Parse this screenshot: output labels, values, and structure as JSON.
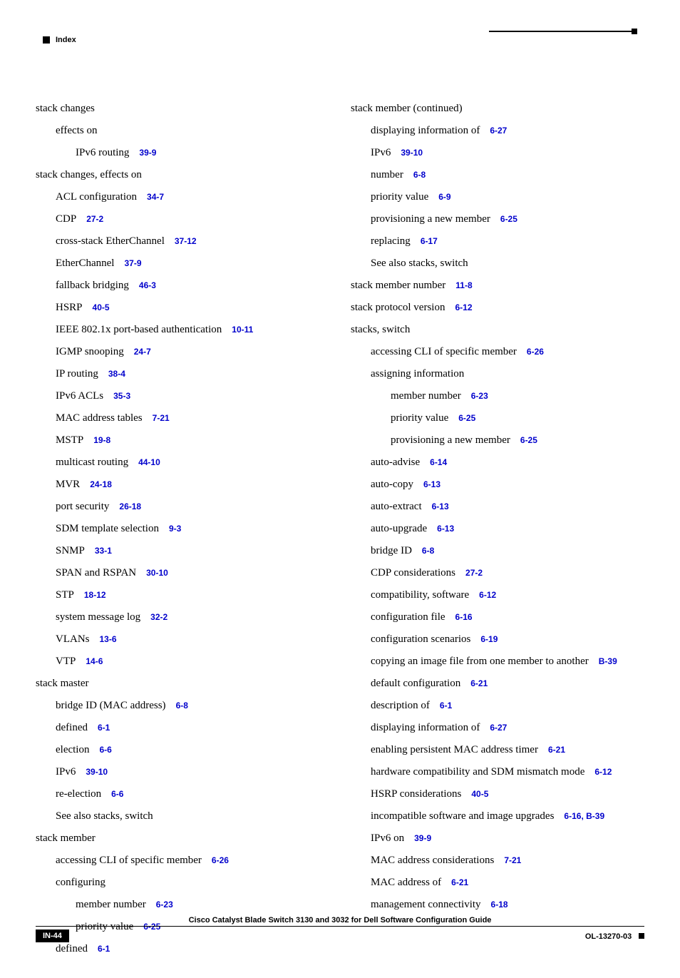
{
  "header": {
    "label": "Index"
  },
  "footer": {
    "title": "Cisco Catalyst Blade Switch 3130 and 3032 for Dell Software Configuration Guide",
    "page_num": "IN-44",
    "doc_id": "OL-13270-03"
  },
  "left": [
    {
      "lvl": 0,
      "text": "stack changes"
    },
    {
      "lvl": 1,
      "text": "effects on"
    },
    {
      "lvl": 2,
      "text": "IPv6 routing",
      "ref": "39-9"
    },
    {
      "lvl": 0,
      "text": "stack changes, effects on"
    },
    {
      "lvl": 1,
      "text": "ACL configuration",
      "ref": "34-7"
    },
    {
      "lvl": 1,
      "text": "CDP",
      "ref": "27-2"
    },
    {
      "lvl": 1,
      "text": "cross-stack EtherChannel",
      "ref": "37-12"
    },
    {
      "lvl": 1,
      "text": "EtherChannel",
      "ref": "37-9"
    },
    {
      "lvl": 1,
      "text": "fallback bridging",
      "ref": "46-3"
    },
    {
      "lvl": 1,
      "text": "HSRP",
      "ref": "40-5"
    },
    {
      "lvl": 1,
      "text": "IEEE 802.1x port-based authentication",
      "ref": "10-11"
    },
    {
      "lvl": 1,
      "text": "IGMP snooping",
      "ref": "24-7"
    },
    {
      "lvl": 1,
      "text": "IP routing",
      "ref": "38-4"
    },
    {
      "lvl": 1,
      "text": "IPv6 ACLs",
      "ref": "35-3"
    },
    {
      "lvl": 1,
      "text": "MAC address tables",
      "ref": "7-21"
    },
    {
      "lvl": 1,
      "text": "MSTP",
      "ref": "19-8"
    },
    {
      "lvl": 1,
      "text": "multicast routing",
      "ref": "44-10"
    },
    {
      "lvl": 1,
      "text": "MVR",
      "ref": "24-18"
    },
    {
      "lvl": 1,
      "text": "port security",
      "ref": "26-18"
    },
    {
      "lvl": 1,
      "text": "SDM template selection",
      "ref": "9-3"
    },
    {
      "lvl": 1,
      "text": "SNMP",
      "ref": "33-1"
    },
    {
      "lvl": 1,
      "text": "SPAN and RSPAN",
      "ref": "30-10"
    },
    {
      "lvl": 1,
      "text": "STP",
      "ref": "18-12"
    },
    {
      "lvl": 1,
      "text": "system message log",
      "ref": "32-2"
    },
    {
      "lvl": 1,
      "text": "VLANs",
      "ref": "13-6"
    },
    {
      "lvl": 1,
      "text": "VTP",
      "ref": "14-6"
    },
    {
      "lvl": 0,
      "text": "stack master"
    },
    {
      "lvl": 1,
      "text": "bridge ID (MAC address)",
      "ref": "6-8"
    },
    {
      "lvl": 1,
      "text": "defined",
      "ref": "6-1"
    },
    {
      "lvl": 1,
      "text": "election",
      "ref": "6-6"
    },
    {
      "lvl": 1,
      "text": "IPv6",
      "ref": "39-10"
    },
    {
      "lvl": 1,
      "text": "re-election",
      "ref": "6-6"
    },
    {
      "lvl": 1,
      "text": "See also stacks, switch"
    },
    {
      "lvl": 0,
      "text": "stack member"
    },
    {
      "lvl": 1,
      "text": "accessing CLI of specific member",
      "ref": "6-26"
    },
    {
      "lvl": 1,
      "text": "configuring"
    },
    {
      "lvl": 2,
      "text": "member number",
      "ref": "6-23"
    },
    {
      "lvl": 2,
      "text": "priority value",
      "ref": "6-25"
    },
    {
      "lvl": 1,
      "text": "defined",
      "ref": "6-1"
    }
  ],
  "right": [
    {
      "lvl": 0,
      "text": "stack member (continued)"
    },
    {
      "lvl": 1,
      "text": "displaying information of",
      "ref": "6-27"
    },
    {
      "lvl": 1,
      "text": "IPv6",
      "ref": "39-10"
    },
    {
      "lvl": 1,
      "text": "number",
      "ref": "6-8"
    },
    {
      "lvl": 1,
      "text": "priority value",
      "ref": "6-9"
    },
    {
      "lvl": 1,
      "text": "provisioning a new member",
      "ref": "6-25"
    },
    {
      "lvl": 1,
      "text": "replacing",
      "ref": "6-17"
    },
    {
      "lvl": 1,
      "text": "See also stacks, switch"
    },
    {
      "lvl": 0,
      "text": "stack member number",
      "ref": "11-8"
    },
    {
      "lvl": 0,
      "text": "stack protocol version",
      "ref": "6-12"
    },
    {
      "lvl": 0,
      "text": "stacks, switch"
    },
    {
      "lvl": 1,
      "text": "accessing CLI of specific member",
      "ref": "6-26"
    },
    {
      "lvl": 1,
      "text": "assigning information"
    },
    {
      "lvl": 2,
      "text": "member number",
      "ref": "6-23"
    },
    {
      "lvl": 2,
      "text": "priority value",
      "ref": "6-25"
    },
    {
      "lvl": 2,
      "text": "provisioning a new member",
      "ref": "6-25"
    },
    {
      "lvl": 1,
      "text": "auto-advise",
      "ref": "6-14"
    },
    {
      "lvl": 1,
      "text": "auto-copy",
      "ref": "6-13"
    },
    {
      "lvl": 1,
      "text": "auto-extract",
      "ref": "6-13"
    },
    {
      "lvl": 1,
      "text": "auto-upgrade",
      "ref": "6-13"
    },
    {
      "lvl": 1,
      "text": "bridge ID",
      "ref": "6-8"
    },
    {
      "lvl": 1,
      "text": "CDP considerations",
      "ref": "27-2"
    },
    {
      "lvl": 1,
      "text": "compatibility, software",
      "ref": "6-12"
    },
    {
      "lvl": 1,
      "text": "configuration file",
      "ref": "6-16"
    },
    {
      "lvl": 1,
      "text": "configuration scenarios",
      "ref": "6-19"
    },
    {
      "lvl": 1,
      "text": "copying an image file from one member to another",
      "ref": "B-39"
    },
    {
      "lvl": 1,
      "text": "default configuration",
      "ref": "6-21"
    },
    {
      "lvl": 1,
      "text": "description of",
      "ref": "6-1"
    },
    {
      "lvl": 1,
      "text": "displaying information of",
      "ref": "6-27"
    },
    {
      "lvl": 1,
      "text": "enabling persistent MAC address timer",
      "ref": "6-21"
    },
    {
      "lvl": 1,
      "text": "hardware compatibility and SDM mismatch mode",
      "ref": "6-12"
    },
    {
      "lvl": 1,
      "text": "HSRP considerations",
      "ref": "40-5"
    },
    {
      "lvl": 1,
      "text": "incompatible software and image upgrades",
      "ref": "6-16, B-39"
    },
    {
      "lvl": 1,
      "text": "IPv6 on",
      "ref": "39-9"
    },
    {
      "lvl": 1,
      "text": "MAC address considerations",
      "ref": "7-21"
    },
    {
      "lvl": 1,
      "text": "MAC address of",
      "ref": "6-21"
    },
    {
      "lvl": 1,
      "text": "management connectivity",
      "ref": "6-18"
    }
  ]
}
